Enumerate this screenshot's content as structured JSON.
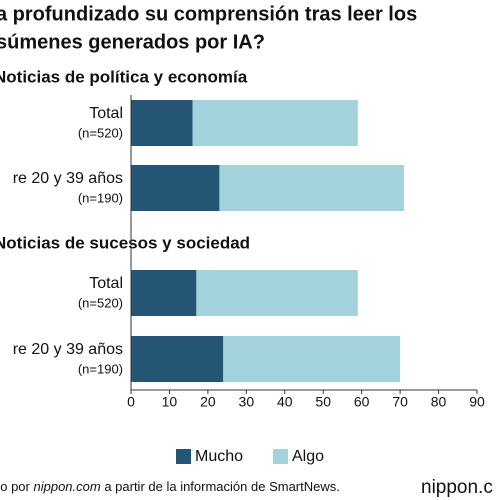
{
  "chart_data": {
    "type": "bar",
    "orientation": "horizontal",
    "stacked": true,
    "title": [
      "a profundizado su comprensión tras leer los",
      "súmenes generados por IA?"
    ],
    "panels": [
      {
        "title": "Noticias de política y economía",
        "categories": [
          "Total",
          "re 20 y 39 años"
        ],
        "sublabels": [
          "(n=520)",
          "(n=190)"
        ]
      },
      {
        "title": "Noticias de sucesos y sociedad",
        "categories": [
          "Total",
          "re 20 y 39 años"
        ],
        "sublabels": [
          "(n=520)",
          "(n=190)"
        ]
      }
    ],
    "series": [
      {
        "name": "Mucho",
        "color": "#245574",
        "values": [
          16,
          23,
          17,
          24
        ]
      },
      {
        "name": "Algo",
        "color": "#a2d3dc",
        "values": [
          43,
          48,
          42,
          46
        ]
      }
    ],
    "xlim": [
      0,
      90
    ],
    "xticks": [
      0,
      10,
      20,
      30,
      40,
      50,
      60,
      70,
      80,
      90
    ],
    "source": {
      "prefix": "do por ",
      "site": "nippon.com",
      "suffix": " a partir de la información de SmartNews."
    },
    "logo": "nippon.c"
  }
}
